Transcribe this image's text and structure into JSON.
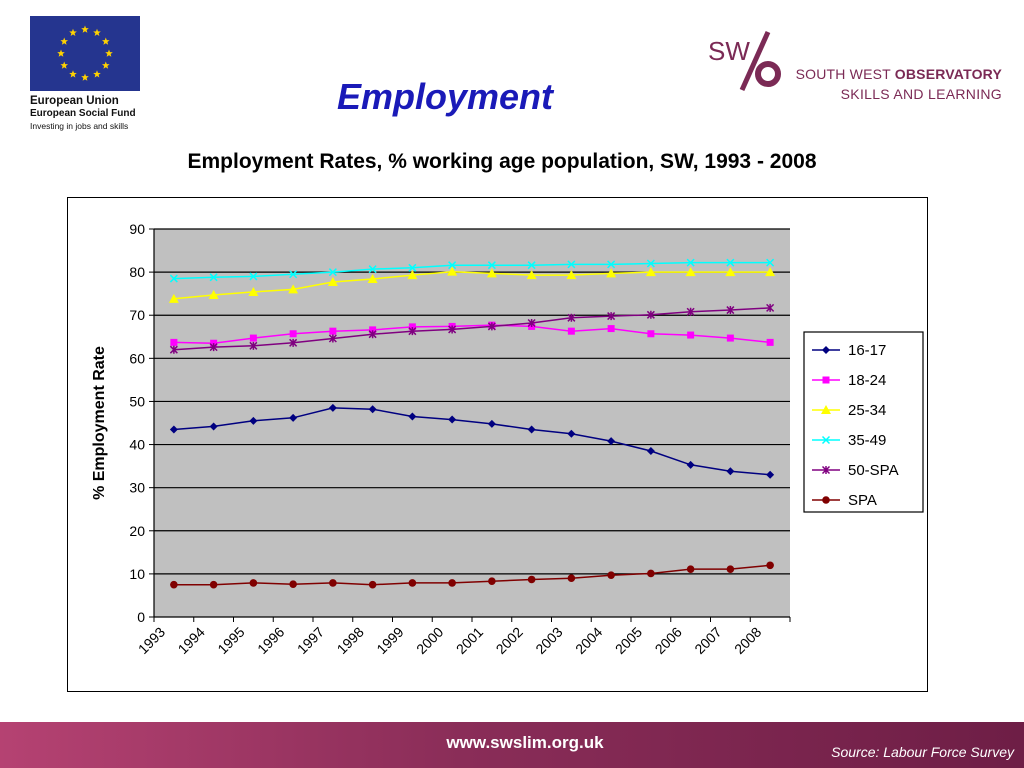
{
  "slide": {
    "title": "Employment",
    "footer_url": "www.swslim.org.uk",
    "footer_source": "Source: Labour Force Survey"
  },
  "logos": {
    "eu": {
      "name": "European Union",
      "fund": "European Social Fund",
      "tagline": "Investing in jobs and skills",
      "flag_color": "#25358f",
      "star_color": "#ffd200"
    },
    "swo": {
      "mark_text": "SW",
      "name_plain": "SOUTH WEST",
      "name_bold": "OBSERVATORY",
      "subtitle": "SKILLS AND LEARNING",
      "color": "#7b2a55"
    }
  },
  "chart_data": {
    "type": "line",
    "title": "Employment Rates, % working age population, SW, 1993 - 2008",
    "xlabel": "",
    "ylabel": "% Employment Rate",
    "ylim": [
      0,
      90
    ],
    "yticks": [
      0,
      10,
      20,
      30,
      40,
      50,
      60,
      70,
      80,
      90
    ],
    "grid": true,
    "plot_background": "#c0c0c0",
    "legend_position": "right",
    "categories": [
      "1993",
      "1994",
      "1995",
      "1996",
      "1997",
      "1998",
      "1999",
      "2000",
      "2001",
      "2002",
      "2003",
      "2004",
      "2005",
      "2006",
      "2007",
      "2008"
    ],
    "series": [
      {
        "name": "16-17",
        "color": "#000080",
        "marker": "diamond",
        "values": [
          43.5,
          44.2,
          45.5,
          46.2,
          48.5,
          48.2,
          46.5,
          45.8,
          44.8,
          43.5,
          42.5,
          40.8,
          38.5,
          35.3,
          33.8,
          33.0
        ]
      },
      {
        "name": "18-24",
        "color": "#ff00ff",
        "marker": "square",
        "values": [
          63.7,
          63.5,
          64.7,
          65.7,
          66.3,
          66.6,
          67.3,
          67.4,
          67.7,
          67.4,
          66.3,
          66.9,
          65.7,
          65.4,
          64.7,
          63.7
        ]
      },
      {
        "name": "25-34",
        "color": "#ffff00",
        "marker": "triangle",
        "values": [
          73.8,
          74.7,
          75.4,
          76.0,
          77.7,
          78.4,
          79.3,
          80.1,
          79.7,
          79.3,
          79.3,
          79.7,
          80.0,
          80.0,
          80.0,
          80.0
        ]
      },
      {
        "name": "35-49",
        "color": "#00ffff",
        "marker": "x",
        "values": [
          78.5,
          78.8,
          79.0,
          79.5,
          80.0,
          80.7,
          81.0,
          81.6,
          81.6,
          81.6,
          81.8,
          81.8,
          82.0,
          82.2,
          82.2,
          82.2
        ]
      },
      {
        "name": "50-SPA",
        "color": "#800080",
        "marker": "star",
        "values": [
          62.0,
          62.6,
          62.9,
          63.6,
          64.6,
          65.6,
          66.3,
          66.7,
          67.4,
          68.2,
          69.4,
          69.8,
          70.1,
          70.8,
          71.2,
          71.7
        ]
      },
      {
        "name": "SPA",
        "color": "#800000",
        "marker": "circle",
        "values": [
          7.5,
          7.5,
          7.9,
          7.6,
          7.9,
          7.5,
          7.9,
          7.9,
          8.3,
          8.7,
          9.0,
          9.7,
          10.1,
          11.1,
          11.1,
          12.0
        ]
      }
    ]
  }
}
